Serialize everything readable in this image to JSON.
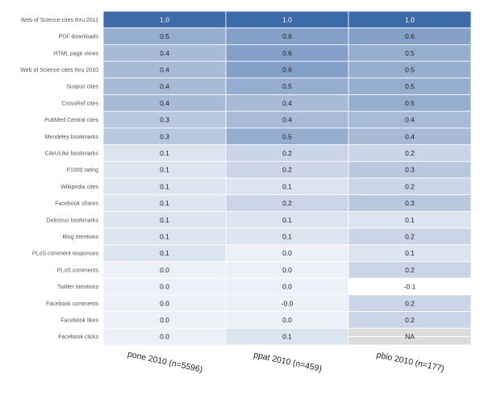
{
  "chart_data": {
    "type": "heatmap",
    "title": "",
    "xlabel": "",
    "ylabel": "",
    "columns": [
      "pone 2010 (n=5596)",
      "ppat 2010 (n=459)",
      "pbio 2010 (n=177)"
    ],
    "rows": [
      "Web of Science cites thru 2011",
      "PDF downloads",
      "HTML page views",
      "Web of Science cites thru 2010",
      "Scopus cites",
      "CrossRef cites",
      "PubMed Central cites",
      "Mendeley bookmarks",
      "CiteULike bookmarks",
      "F1000 rating",
      "Wikipedia cites",
      "Facebook shares",
      "Delicious bookmarks",
      "Blog mentions",
      "PLoS comment responses",
      "PLoS comments",
      "Twitter mentions",
      "Facebook comments",
      "Facebook likes",
      "Facebook clicks"
    ],
    "values": [
      [
        1.0,
        1.0,
        1.0
      ],
      [
        0.5,
        0.6,
        0.6
      ],
      [
        0.4,
        0.6,
        0.5
      ],
      [
        0.4,
        0.6,
        0.5
      ],
      [
        0.4,
        0.5,
        0.5
      ],
      [
        0.4,
        0.4,
        0.5
      ],
      [
        0.3,
        0.4,
        0.4
      ],
      [
        0.3,
        0.5,
        0.4
      ],
      [
        0.1,
        0.2,
        0.2
      ],
      [
        0.1,
        0.2,
        0.3
      ],
      [
        0.1,
        0.1,
        0.2
      ],
      [
        0.1,
        0.2,
        0.3
      ],
      [
        0.1,
        0.1,
        0.1
      ],
      [
        0.1,
        0.1,
        0.2
      ],
      [
        0.1,
        0.0,
        0.1
      ],
      [
        0.0,
        0.0,
        0.2
      ],
      [
        0.0,
        0.0,
        -0.1
      ],
      [
        0.0,
        -0.0,
        0.2
      ],
      [
        0.0,
        0.0,
        0.2
      ],
      [
        0.0,
        0.1,
        null
      ]
    ],
    "labels": [
      [
        "1.0",
        "1.0",
        "1.0"
      ],
      [
        "0.5",
        "0.6",
        "0.6"
      ],
      [
        "0.4",
        "0.6",
        "0.5"
      ],
      [
        "0.4",
        "0.6",
        "0.5"
      ],
      [
        "0.4",
        "0.5",
        "0.5"
      ],
      [
        "0.4",
        "0.4",
        "0.5"
      ],
      [
        "0.3",
        "0.4",
        "0.4"
      ],
      [
        "0.3",
        "0.5",
        "0.4"
      ],
      [
        "0.1",
        "0.2",
        "0.2"
      ],
      [
        "0.1",
        "0.2",
        "0.3"
      ],
      [
        "0.1",
        "0.1",
        "0.2"
      ],
      [
        "0.1",
        "0.2",
        "0.3"
      ],
      [
        "0.1",
        "0.1",
        "0.1"
      ],
      [
        "0.1",
        "0.1",
        "0.2"
      ],
      [
        "0.1",
        "0.0",
        "0.1"
      ],
      [
        "0.0",
        "0.0",
        "0.2"
      ],
      [
        "0.0",
        "0.0",
        "-0.1"
      ],
      [
        "0.0",
        "-0.0",
        "0.2"
      ],
      [
        "0.0",
        "0.0",
        "0.2"
      ],
      [
        "0.0",
        "0.1",
        "NA"
      ]
    ],
    "color_scale": {
      "low_color": "#ffffff",
      "high_color": "#3d6aa8",
      "na_color": "#dcdcdc",
      "range": [
        -0.1,
        1.0
      ]
    },
    "grid": false,
    "legend": "none"
  }
}
